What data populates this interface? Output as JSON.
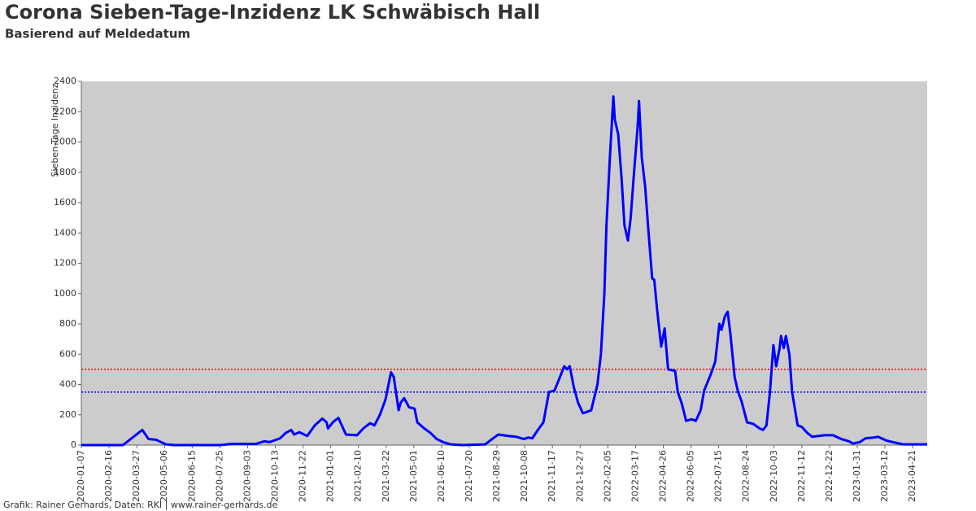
{
  "chart_data": {
    "type": "line",
    "title": "Corona Sieben-Tage-Inzidenz LK Schwäbisch Hall",
    "subtitle": "Basierend auf Meldedatum",
    "y_label": "Sieben-Tage Inzidenz",
    "footer": "Grafik: Rainer Gerhards, Daten: RKI | www.rainer-gerhards.de",
    "color": "#0000ff",
    "x": [
      "2020-01-07",
      "2020-03-07",
      "2020-03-21",
      "2020-04-04",
      "2020-04-13",
      "2020-04-24",
      "2020-05-08",
      "2020-05-20",
      "2020-07-25",
      "2020-08-12",
      "2020-09-15",
      "2020-09-27",
      "2020-10-05",
      "2020-10-20",
      "2020-10-28",
      "2020-11-05",
      "2020-11-09",
      "2020-11-17",
      "2020-11-28",
      "2020-12-09",
      "2020-12-20",
      "2020-12-26",
      "2020-12-28",
      "2021-01-04",
      "2021-01-12",
      "2021-01-23",
      "2021-02-08",
      "2021-02-17",
      "2021-02-27",
      "2021-03-05",
      "2021-03-13",
      "2021-03-21",
      "2021-03-29",
      "2021-04-02",
      "2021-04-09",
      "2021-04-12",
      "2021-04-17",
      "2021-04-24",
      "2021-05-02",
      "2021-05-06",
      "2021-05-16",
      "2021-05-25",
      "2021-06-03",
      "2021-06-12",
      "2021-06-23",
      "2021-07-10",
      "2021-08-12",
      "2021-08-22",
      "2021-08-31",
      "2021-09-15",
      "2021-09-26",
      "2021-10-07",
      "2021-10-13",
      "2021-10-19",
      "2021-10-27",
      "2021-11-04",
      "2021-11-12",
      "2021-11-20",
      "2021-11-28",
      "2021-12-04",
      "2021-12-08",
      "2021-12-12",
      "2021-12-18",
      "2021-12-24",
      "2021-12-31",
      "2022-01-12",
      "2022-01-21",
      "2022-01-26",
      "2022-01-31",
      "2022-02-03",
      "2022-02-08",
      "2022-02-13",
      "2022-02-15",
      "2022-02-20",
      "2022-02-25",
      "2022-03-01",
      "2022-03-06",
      "2022-03-10",
      "2022-03-14",
      "2022-03-20",
      "2022-03-22",
      "2022-03-26",
      "2022-03-31",
      "2022-04-04",
      "2022-04-10",
      "2022-04-13",
      "2022-04-17",
      "2022-04-23",
      "2022-04-28",
      "2022-05-03",
      "2022-05-13",
      "2022-05-17",
      "2022-05-23",
      "2022-05-29",
      "2022-06-06",
      "2022-06-12",
      "2022-06-19",
      "2022-06-24",
      "2022-07-03",
      "2022-07-10",
      "2022-07-16",
      "2022-07-19",
      "2022-07-24",
      "2022-07-28",
      "2022-08-01",
      "2022-08-07",
      "2022-08-12",
      "2022-08-17",
      "2022-08-25",
      "2022-09-03",
      "2022-09-12",
      "2022-09-17",
      "2022-09-22",
      "2022-09-27",
      "2022-10-02",
      "2022-10-06",
      "2022-10-11",
      "2022-10-13",
      "2022-10-17",
      "2022-10-20",
      "2022-10-25",
      "2022-10-29",
      "2022-11-06",
      "2022-11-12",
      "2022-11-20",
      "2022-11-27",
      "2022-12-15",
      "2022-12-27",
      "2023-01-08",
      "2023-01-19",
      "2023-01-25",
      "2023-02-04",
      "2023-02-12",
      "2023-02-24",
      "2023-03-02",
      "2023-03-14",
      "2023-03-23",
      "2023-04-07",
      "2023-05-12"
    ],
    "values": [
      0,
      0,
      50,
      100,
      40,
      35,
      5,
      0,
      0,
      8,
      8,
      25,
      20,
      45,
      80,
      100,
      70,
      85,
      60,
      130,
      175,
      150,
      110,
      150,
      180,
      70,
      65,
      110,
      145,
      130,
      200,
      300,
      480,
      450,
      230,
      280,
      310,
      250,
      240,
      150,
      110,
      80,
      40,
      20,
      5,
      0,
      5,
      40,
      70,
      60,
      55,
      40,
      50,
      45,
      100,
      150,
      350,
      360,
      450,
      520,
      500,
      520,
      380,
      280,
      210,
      230,
      400,
      600,
      1000,
      1450,
      1900,
      2300,
      2150,
      2050,
      1750,
      1450,
      1350,
      1500,
      1750,
      2100,
      2270,
      1900,
      1700,
      1450,
      1100,
      1090,
      900,
      650,
      770,
      500,
      490,
      350,
      270,
      160,
      170,
      160,
      230,
      360,
      460,
      550,
      800,
      760,
      850,
      880,
      730,
      450,
      350,
      290,
      150,
      140,
      110,
      100,
      130,
      350,
      660,
      520,
      640,
      720,
      640,
      720,
      600,
      350,
      130,
      120,
      80,
      55,
      65,
      65,
      40,
      25,
      10,
      20,
      45,
      50,
      55,
      30,
      20,
      5,
      5
    ],
    "xlim": [
      "2020-01-07",
      "2023-05-12"
    ],
    "xticks": [
      "2020-01-07",
      "2020-02-16",
      "2020-03-27",
      "2020-05-06",
      "2020-06-15",
      "2020-07-25",
      "2020-09-03",
      "2020-10-13",
      "2020-11-22",
      "2021-01-01",
      "2021-02-10",
      "2021-03-22",
      "2021-05-01",
      "2021-06-10",
      "2021-07-20",
      "2021-08-29",
      "2021-10-08",
      "2021-11-17",
      "2021-12-27",
      "2022-02-05",
      "2022-03-17",
      "2022-04-26",
      "2022-06-05",
      "2022-07-15",
      "2022-08-24",
      "2022-10-03",
      "2022-11-12",
      "2022-12-22",
      "2023-01-31",
      "2023-03-12",
      "2023-04-21"
    ],
    "ylim": [
      0,
      2400
    ],
    "yticks": [
      0,
      200,
      400,
      600,
      800,
      1000,
      1200,
      1400,
      1600,
      1800,
      2000,
      2200,
      2400
    ],
    "reference_lines": [
      {
        "value": 500,
        "color": "#ff0000"
      },
      {
        "value": 350,
        "color": "#0000ff"
      }
    ],
    "plot_background": "#cccccc"
  }
}
